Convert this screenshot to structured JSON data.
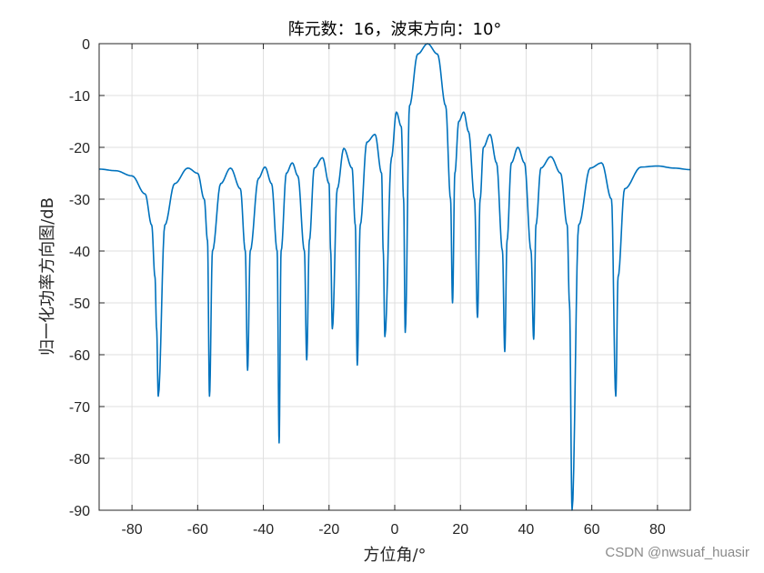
{
  "chart_data": {
    "type": "line",
    "title": "阵元数：16，波束方向：10°",
    "xlabel": "方位角/°",
    "ylabel": "归一化功率方向图/dB",
    "xlim": [
      -90,
      90
    ],
    "ylim": [
      -90,
      0
    ],
    "xticks": [
      -80,
      -60,
      -40,
      -20,
      0,
      20,
      40,
      60,
      80
    ],
    "yticks": [
      0,
      -10,
      -20,
      -30,
      -40,
      -50,
      -60,
      -70,
      -80,
      -90
    ],
    "grid": true,
    "line_color": "#0072BD",
    "series": [
      {
        "x": [
          -90,
          -85,
          -80,
          -76,
          -74,
          -73,
          -72.5,
          -72,
          -70,
          -67,
          -63,
          -60,
          -58,
          -57,
          -56.4,
          -55.5,
          -53,
          -50,
          -47,
          -45.5,
          -44.8,
          -44,
          -41.5,
          -39.5,
          -37.5,
          -35.8,
          -35.2,
          -34.6,
          -33,
          -31.2,
          -29.5,
          -27.5,
          -26.8,
          -26,
          -24.5,
          -22,
          -20,
          -19.5,
          -19,
          -17.5,
          -15.5,
          -13,
          -12,
          -11.4,
          -10.5,
          -8.5,
          -6,
          -4,
          -3.5,
          -3,
          -1,
          0.5,
          2,
          2.7,
          3.2,
          4.5,
          7,
          10,
          13,
          15.5,
          17,
          17.6,
          18.3,
          19.5,
          21,
          22.5,
          24.3,
          25.2,
          26,
          27,
          29,
          31,
          32.8,
          33.5,
          34.2,
          35.5,
          37.5,
          39.5,
          41.5,
          42.3,
          43,
          44.5,
          47.5,
          50.5,
          52.5,
          53.2,
          54,
          56,
          59.5,
          63,
          66,
          67.3,
          68,
          70,
          75,
          80,
          85,
          90
        ],
        "y": [
          -24.2,
          -24.5,
          -25.5,
          -29,
          -35,
          -45,
          -55,
          -68,
          -35,
          -27,
          -24,
          -25,
          -30,
          -38,
          -68,
          -40,
          -27,
          -24,
          -28,
          -40,
          -63,
          -40,
          -26,
          -23.8,
          -27,
          -40,
          -77,
          -40,
          -25,
          -23,
          -25.5,
          -40,
          -61,
          -38,
          -24,
          -22,
          -27,
          -40,
          -55,
          -28,
          -20.2,
          -24,
          -35,
          -62,
          -35,
          -19,
          -17.5,
          -25,
          -40,
          -56.5,
          -22,
          -13.2,
          -16,
          -30,
          -55.7,
          -12,
          -2,
          0,
          -2,
          -12,
          -30,
          -50,
          -25,
          -15,
          -13.2,
          -17,
          -30,
          -52.8,
          -30,
          -20,
          -17.5,
          -23,
          -40,
          -59.4,
          -38,
          -23,
          -20,
          -23,
          -40,
          -57,
          -35,
          -24,
          -21.8,
          -25,
          -35,
          -50,
          -90,
          -35,
          -24,
          -23,
          -30,
          -68,
          -45,
          -28,
          -23.8,
          -23.6,
          -24,
          -24.3
        ]
      }
    ]
  },
  "watermark": "CSDN @nwsuaf_huasir"
}
